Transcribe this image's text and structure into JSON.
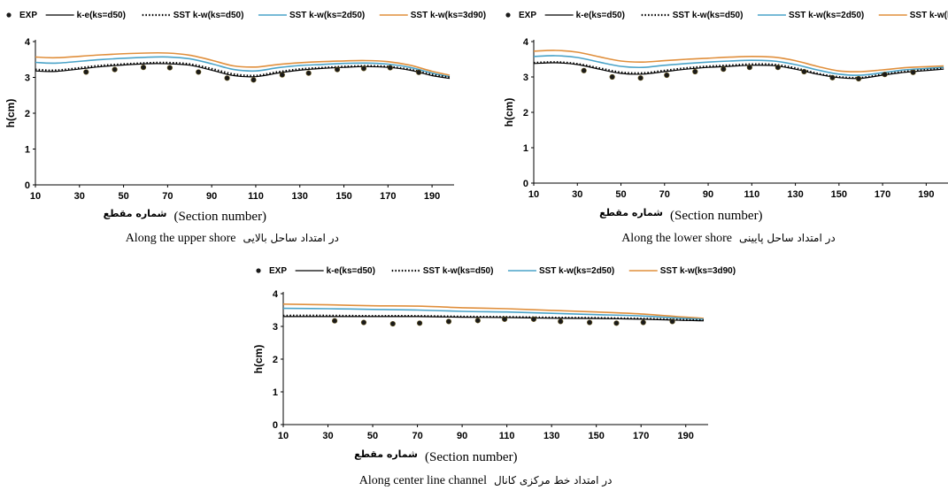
{
  "legend": {
    "exp": "EXP",
    "ke": "k-e(ks=d50)",
    "sst1": "SST k-w(ks=d50)",
    "sst2": "SST k-w(ks=2d50)",
    "sst3": "SST k-w(ks=3d90)"
  },
  "colors": {
    "exp": "#1a1a1a",
    "ke": "#000000",
    "sst1": "#000000",
    "sst2": "#4aa3c8",
    "sst3": "#e08f3c"
  },
  "chart_data": [
    {
      "type": "line",
      "ylabel": "h(cm)",
      "xlabel": "(Section number)",
      "xlabel_fa": "شماره مقطع",
      "caption": "Along the upper shore",
      "caption_fa": "در امتداد ساحل بالایی",
      "xlim": [
        10,
        200
      ],
      "ylim": [
        0,
        4
      ],
      "xticks": [
        10,
        30,
        50,
        70,
        90,
        110,
        130,
        150,
        170,
        190
      ],
      "yticks": [
        0,
        1,
        2,
        3,
        4
      ],
      "exp": {
        "x": [
          33,
          46,
          59,
          71,
          84,
          97,
          109,
          122,
          134,
          147,
          159,
          171,
          184
        ],
        "y": [
          3.15,
          3.22,
          3.28,
          3.27,
          3.15,
          2.98,
          2.93,
          3.07,
          3.12,
          3.22,
          3.25,
          3.27,
          3.14
        ]
      },
      "series": [
        {
          "name": "k-e(ks=d50)",
          "key": "ke",
          "x": [
            10,
            20,
            40,
            60,
            70,
            80,
            90,
            100,
            110,
            120,
            130,
            140,
            150,
            160,
            170,
            180,
            190,
            198
          ],
          "y": [
            3.18,
            3.17,
            3.3,
            3.38,
            3.38,
            3.34,
            3.2,
            3.05,
            3.02,
            3.12,
            3.2,
            3.25,
            3.28,
            3.3,
            3.28,
            3.2,
            3.05,
            2.97
          ]
        },
        {
          "name": "SST k-w(ks=d50)",
          "key": "sst1",
          "x": [
            10,
            20,
            40,
            60,
            70,
            80,
            90,
            100,
            110,
            120,
            130,
            140,
            150,
            160,
            170,
            180,
            190,
            198
          ],
          "y": [
            3.22,
            3.2,
            3.33,
            3.4,
            3.41,
            3.37,
            3.24,
            3.09,
            3.05,
            3.15,
            3.23,
            3.27,
            3.3,
            3.32,
            3.3,
            3.22,
            3.08,
            3.0
          ]
        },
        {
          "name": "SST k-w(ks=2d50)",
          "key": "sst2",
          "x": [
            10,
            20,
            40,
            60,
            70,
            80,
            90,
            100,
            110,
            120,
            130,
            140,
            150,
            160,
            170,
            180,
            190,
            198
          ],
          "y": [
            3.42,
            3.4,
            3.5,
            3.56,
            3.57,
            3.52,
            3.38,
            3.22,
            3.18,
            3.27,
            3.33,
            3.36,
            3.39,
            3.4,
            3.37,
            3.28,
            3.12,
            3.02
          ]
        },
        {
          "name": "SST k-w(ks=3d90)",
          "key": "sst3",
          "x": [
            10,
            20,
            40,
            60,
            70,
            80,
            90,
            100,
            110,
            120,
            130,
            140,
            150,
            160,
            170,
            180,
            190,
            198
          ],
          "y": [
            3.57,
            3.55,
            3.63,
            3.68,
            3.68,
            3.62,
            3.48,
            3.32,
            3.29,
            3.36,
            3.41,
            3.44,
            3.46,
            3.47,
            3.44,
            3.34,
            3.17,
            3.06
          ]
        }
      ]
    },
    {
      "type": "line",
      "ylabel": "h(cm)",
      "xlabel": "(Section number)",
      "xlabel_fa": "شماره مقطع",
      "caption": "Along the lower shore",
      "caption_fa": "در امتداد ساحل پایینی",
      "xlim": [
        10,
        200
      ],
      "ylim": [
        0,
        4
      ],
      "xticks": [
        10,
        30,
        50,
        70,
        90,
        110,
        130,
        150,
        170,
        190
      ],
      "yticks": [
        0,
        1,
        2,
        3,
        4
      ],
      "exp": {
        "x": [
          33,
          46,
          59,
          71,
          84,
          97,
          109,
          122,
          134,
          147,
          159,
          171,
          184
        ],
        "y": [
          3.18,
          3.0,
          2.97,
          3.05,
          3.15,
          3.22,
          3.27,
          3.27,
          3.15,
          2.98,
          2.95,
          3.07,
          3.13
        ]
      },
      "series": [
        {
          "name": "k-e(ks=d50)",
          "key": "ke",
          "x": [
            10,
            20,
            30,
            40,
            50,
            60,
            70,
            80,
            90,
            100,
            110,
            120,
            130,
            140,
            150,
            160,
            170,
            180,
            190,
            198
          ],
          "y": [
            3.38,
            3.4,
            3.35,
            3.22,
            3.1,
            3.08,
            3.15,
            3.22,
            3.27,
            3.3,
            3.33,
            3.32,
            3.22,
            3.08,
            2.98,
            2.96,
            3.05,
            3.13,
            3.18,
            3.22
          ]
        },
        {
          "name": "SST k-w(ks=d50)",
          "key": "sst1",
          "x": [
            10,
            20,
            30,
            40,
            50,
            60,
            70,
            80,
            90,
            100,
            110,
            120,
            130,
            140,
            150,
            160,
            170,
            180,
            190,
            198
          ],
          "y": [
            3.4,
            3.42,
            3.37,
            3.25,
            3.13,
            3.11,
            3.18,
            3.25,
            3.3,
            3.33,
            3.36,
            3.35,
            3.25,
            3.1,
            3.0,
            2.98,
            3.07,
            3.15,
            3.2,
            3.24
          ]
        },
        {
          "name": "SST k-w(ks=2d50)",
          "key": "sst2",
          "x": [
            10,
            20,
            30,
            40,
            50,
            60,
            70,
            80,
            90,
            100,
            110,
            120,
            130,
            140,
            150,
            160,
            170,
            180,
            190,
            198
          ],
          "y": [
            3.58,
            3.6,
            3.55,
            3.42,
            3.3,
            3.27,
            3.33,
            3.38,
            3.42,
            3.45,
            3.47,
            3.45,
            3.35,
            3.2,
            3.08,
            3.05,
            3.12,
            3.2,
            3.24,
            3.27
          ]
        },
        {
          "name": "SST k-w(ks=3d90)",
          "key": "sst3",
          "x": [
            10,
            20,
            30,
            40,
            50,
            60,
            70,
            80,
            90,
            100,
            110,
            120,
            130,
            140,
            150,
            160,
            170,
            180,
            190,
            198
          ],
          "y": [
            3.73,
            3.75,
            3.7,
            3.57,
            3.45,
            3.42,
            3.46,
            3.5,
            3.53,
            3.56,
            3.58,
            3.56,
            3.46,
            3.3,
            3.17,
            3.15,
            3.2,
            3.26,
            3.29,
            3.31
          ]
        }
      ]
    },
    {
      "type": "line",
      "ylabel": "h(cm)",
      "xlabel": "(Section number)",
      "xlabel_fa": "شماره مقطع",
      "caption": "Along center line channel",
      "caption_fa": "در امتداد خط مرکزی کانال",
      "xlim": [
        10,
        200
      ],
      "ylim": [
        0,
        4
      ],
      "xticks": [
        10,
        30,
        50,
        70,
        90,
        110,
        130,
        150,
        170,
        190
      ],
      "yticks": [
        0,
        1,
        2,
        3,
        4
      ],
      "exp": {
        "x": [
          33,
          46,
          59,
          71,
          84,
          97,
          109,
          122,
          134,
          147,
          159,
          171,
          184
        ],
        "y": [
          3.17,
          3.12,
          3.08,
          3.1,
          3.15,
          3.18,
          3.22,
          3.22,
          3.15,
          3.12,
          3.1,
          3.12,
          3.15
        ]
      },
      "series": [
        {
          "name": "k-e(ks=d50)",
          "key": "ke",
          "x": [
            10,
            30,
            50,
            70,
            90,
            110,
            130,
            150,
            170,
            190,
            198
          ],
          "y": [
            3.3,
            3.3,
            3.3,
            3.3,
            3.28,
            3.27,
            3.25,
            3.24,
            3.22,
            3.18,
            3.17
          ]
        },
        {
          "name": "SST k-w(ks=d50)",
          "key": "sst1",
          "x": [
            10,
            30,
            50,
            70,
            90,
            110,
            130,
            150,
            170,
            190,
            198
          ],
          "y": [
            3.33,
            3.33,
            3.32,
            3.32,
            3.3,
            3.29,
            3.27,
            3.26,
            3.24,
            3.2,
            3.19
          ]
        },
        {
          "name": "SST k-w(ks=2d50)",
          "key": "sst2",
          "x": [
            10,
            30,
            50,
            70,
            90,
            110,
            130,
            150,
            170,
            190,
            198
          ],
          "y": [
            3.55,
            3.54,
            3.52,
            3.5,
            3.46,
            3.44,
            3.4,
            3.36,
            3.32,
            3.24,
            3.22
          ]
        },
        {
          "name": "SST k-w(ks=3d90)",
          "key": "sst3",
          "x": [
            10,
            30,
            50,
            70,
            90,
            110,
            130,
            150,
            170,
            190,
            198
          ],
          "y": [
            3.68,
            3.66,
            3.63,
            3.62,
            3.57,
            3.54,
            3.49,
            3.44,
            3.38,
            3.28,
            3.25
          ]
        }
      ]
    }
  ]
}
